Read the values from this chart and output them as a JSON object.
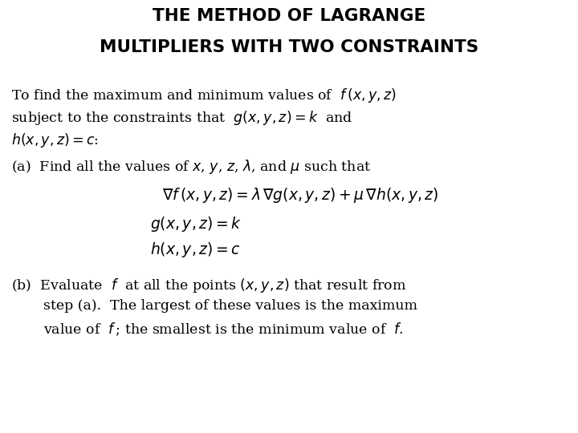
{
  "title_line1": "THE METHOD OF LAGRANGE",
  "title_line2": "MULTIPLIERS WITH TWO CONSTRAINTS",
  "bg_color": "#ffffff",
  "text_color": "#000000",
  "title_fontsize": 15.5,
  "body_fontsize": 12.5,
  "math_fontsize": 13.5,
  "lm": 0.02,
  "eq_indent": 0.28,
  "eq2_indent": 0.26
}
